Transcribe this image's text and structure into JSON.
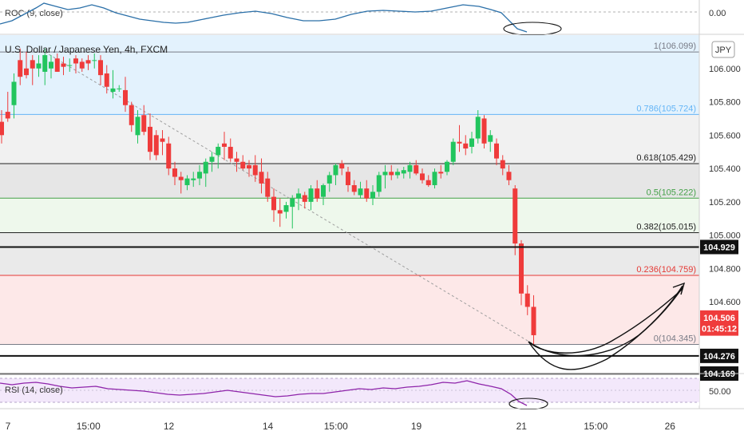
{
  "roc_panel": {
    "label": "ROC (9, close)",
    "axis_value": "0.00"
  },
  "main_panel": {
    "symbol": "U.S. Dollar / Japanese Yen, 4h, FXCM",
    "currency_badge": "JPY"
  },
  "rsi_panel": {
    "label": "RSI (14, close)",
    "axis_value": "50.00"
  },
  "colors": {
    "up": "#22c55e",
    "down": "#ef3b3b",
    "roc_line": "#2a6fa8",
    "rsi_line": "#8e24aa",
    "trend_line": "#9e9e9e"
  },
  "chart_data": {
    "type": "candlestick",
    "title": "U.S. Dollar / Japanese Yen, 4h, FXCM",
    "ylim": [
      104.17,
      106.2
    ],
    "y_ticks": [
      "106.000",
      "105.800",
      "105.600",
      "105.400",
      "105.200",
      "105.000",
      "104.800",
      "104.600"
    ],
    "x_ticks": [
      {
        "label": "7",
        "i": 0
      },
      {
        "label": "15:00",
        "i": 13
      },
      {
        "label": "12",
        "i": 26
      },
      {
        "label": "14",
        "i": 42
      },
      {
        "label": "15:00",
        "i": 53
      },
      {
        "label": "19",
        "i": 66
      },
      {
        "label": "21",
        "i": 83
      },
      {
        "label": "15:00",
        "i": 95
      },
      {
        "label": "26",
        "i": 107
      }
    ],
    "fib_levels": [
      {
        "ratio": "1",
        "value": 106.099,
        "label": "1(106.099)",
        "color": "#787b86",
        "fill": "#e3f2fd"
      },
      {
        "ratio": "0.786",
        "value": 105.724,
        "label": "0.786(105.724)",
        "color": "#64b5f6",
        "fill": "#f1f1f1"
      },
      {
        "ratio": "0.618",
        "value": 105.429,
        "label": "0.618(105.429)",
        "color": "#222222",
        "fill": "#e6e6e6"
      },
      {
        "ratio": "0.5",
        "value": 105.222,
        "label": "0.5(105.222)",
        "color": "#43a047",
        "fill": "#eef8ec"
      },
      {
        "ratio": "0.382",
        "value": 105.015,
        "label": "0.382(105.015)",
        "color": "#222222",
        "fill": "#eaeaea"
      },
      {
        "ratio": "0.236",
        "value": 104.759,
        "label": "0.236(104.759)",
        "color": "#e53935",
        "fill": "#fde8e8"
      },
      {
        "ratio": "0",
        "value": 104.345,
        "label": "0(104.345)",
        "color": "#787b86",
        "fill": "#fde8e8"
      }
    ],
    "horizontal_lines": [
      104.929,
      104.276,
      104.169
    ],
    "price_badges": [
      {
        "value": 104.929,
        "text": "104.929",
        "bg": "#111111"
      },
      {
        "value": 104.506,
        "text": "104.506",
        "bg": "#ef3b3b"
      },
      {
        "value": 104.44,
        "text": "01:45:12",
        "bg": "#ef3b3b"
      },
      {
        "value": 104.276,
        "text": "104.276",
        "bg": "#111111"
      },
      {
        "value": 104.169,
        "text": "104.169",
        "bg": "#111111"
      }
    ],
    "candles": [
      [
        105.68,
        105.75,
        105.55,
        105.6
      ],
      [
        105.74,
        105.86,
        105.68,
        105.7
      ],
      [
        105.78,
        105.97,
        105.7,
        105.92
      ],
      [
        106.05,
        106.12,
        105.9,
        105.95
      ],
      [
        106.0,
        106.1,
        105.94,
        105.96
      ],
      [
        106.05,
        106.08,
        105.9,
        106.0
      ],
      [
        106.0,
        106.08,
        105.95,
        106.03
      ],
      [
        105.98,
        106.12,
        105.9,
        106.08
      ],
      [
        106.0,
        106.08,
        105.94,
        106.04
      ],
      [
        106.06,
        106.09,
        105.98,
        105.98
      ],
      [
        106.03,
        106.07,
        105.96,
        106.01
      ],
      [
        106.02,
        106.06,
        105.98,
        106.02
      ],
      [
        106.06,
        106.08,
        105.97,
        106.03
      ],
      [
        106.04,
        106.06,
        105.98,
        106.0
      ],
      [
        106.05,
        106.08,
        105.99,
        106.03
      ],
      [
        106.05,
        106.09,
        106.0,
        106.05
      ],
      [
        106.05,
        106.08,
        105.9,
        105.96
      ],
      [
        105.97,
        106.02,
        105.85,
        105.89
      ],
      [
        105.86,
        105.99,
        105.82,
        105.88
      ],
      [
        105.88,
        105.9,
        105.86,
        105.88
      ],
      [
        105.87,
        105.95,
        105.74,
        105.78
      ],
      [
        105.78,
        105.8,
        105.62,
        105.66
      ],
      [
        105.6,
        105.75,
        105.55,
        105.71
      ],
      [
        105.72,
        105.78,
        105.6,
        105.62
      ],
      [
        105.65,
        105.73,
        105.45,
        105.5
      ],
      [
        105.6,
        105.63,
        105.45,
        105.48
      ],
      [
        105.58,
        105.63,
        105.48,
        105.56
      ],
      [
        105.55,
        105.59,
        105.36,
        105.4
      ],
      [
        105.4,
        105.44,
        105.3,
        105.35
      ],
      [
        105.35,
        105.38,
        105.25,
        105.33
      ],
      [
        105.3,
        105.36,
        105.27,
        105.34
      ],
      [
        105.33,
        105.38,
        105.29,
        105.34
      ],
      [
        105.34,
        105.42,
        105.3,
        105.38
      ],
      [
        105.37,
        105.46,
        105.29,
        105.44
      ],
      [
        105.44,
        105.5,
        105.38,
        105.47
      ],
      [
        105.48,
        105.55,
        105.4,
        105.53
      ],
      [
        105.55,
        105.62,
        105.45,
        105.53
      ],
      [
        105.53,
        105.58,
        105.44,
        105.46
      ],
      [
        105.46,
        105.5,
        105.38,
        105.44
      ],
      [
        105.44,
        105.48,
        105.39,
        105.4
      ],
      [
        105.42,
        105.45,
        105.35,
        105.4
      ],
      [
        105.42,
        105.48,
        105.32,
        105.36
      ],
      [
        105.38,
        105.46,
        105.25,
        105.31
      ],
      [
        105.34,
        105.38,
        105.2,
        105.23
      ],
      [
        105.23,
        105.28,
        105.08,
        105.15
      ],
      [
        105.15,
        105.22,
        105.05,
        105.13
      ],
      [
        105.14,
        105.2,
        105.1,
        105.18
      ],
      [
        105.17,
        105.24,
        105.04,
        105.22
      ],
      [
        105.22,
        105.28,
        105.15,
        105.25
      ],
      [
        105.24,
        105.26,
        105.16,
        105.2
      ],
      [
        105.2,
        105.3,
        105.15,
        105.28
      ],
      [
        105.28,
        105.33,
        105.2,
        105.22
      ],
      [
        105.23,
        105.31,
        105.18,
        105.3
      ],
      [
        105.31,
        105.38,
        105.26,
        105.36
      ],
      [
        105.36,
        105.43,
        105.3,
        105.42
      ],
      [
        105.43,
        105.45,
        105.36,
        105.4
      ],
      [
        105.38,
        105.41,
        105.26,
        105.3
      ],
      [
        105.3,
        105.33,
        105.24,
        105.26
      ],
      [
        105.24,
        105.32,
        105.22,
        105.28
      ],
      [
        105.28,
        105.33,
        105.2,
        105.22
      ],
      [
        105.22,
        105.3,
        105.18,
        105.26
      ],
      [
        105.26,
        105.38,
        105.23,
        105.36
      ],
      [
        105.36,
        105.42,
        105.28,
        105.38
      ],
      [
        105.38,
        105.42,
        105.33,
        105.36
      ],
      [
        105.36,
        105.4,
        105.34,
        105.38
      ],
      [
        105.37,
        105.41,
        105.34,
        105.39
      ],
      [
        105.38,
        105.44,
        105.34,
        105.42
      ],
      [
        105.42,
        105.45,
        105.36,
        105.37
      ],
      [
        105.37,
        105.4,
        105.31,
        105.33
      ],
      [
        105.33,
        105.36,
        105.29,
        105.3
      ],
      [
        105.3,
        105.4,
        105.28,
        105.38
      ],
      [
        105.38,
        105.42,
        105.34,
        105.37
      ],
      [
        105.38,
        105.45,
        105.36,
        105.44
      ],
      [
        105.44,
        105.58,
        105.42,
        105.56
      ],
      [
        105.56,
        105.66,
        105.5,
        105.55
      ],
      [
        105.55,
        105.6,
        105.48,
        105.52
      ],
      [
        105.53,
        105.62,
        105.49,
        105.58
      ],
      [
        105.58,
        105.75,
        105.55,
        105.71
      ],
      [
        105.7,
        105.72,
        105.52,
        105.55
      ],
      [
        105.56,
        105.63,
        105.5,
        105.6
      ],
      [
        105.55,
        105.58,
        105.42,
        105.46
      ],
      [
        105.45,
        105.48,
        105.36,
        105.4
      ],
      [
        105.38,
        105.42,
        105.3,
        105.33
      ],
      [
        105.28,
        105.3,
        104.88,
        104.95
      ],
      [
        104.95,
        104.97,
        104.58,
        104.65
      ],
      [
        104.65,
        104.7,
        104.52,
        104.57
      ],
      [
        104.57,
        104.64,
        104.34,
        104.4
      ]
    ]
  }
}
